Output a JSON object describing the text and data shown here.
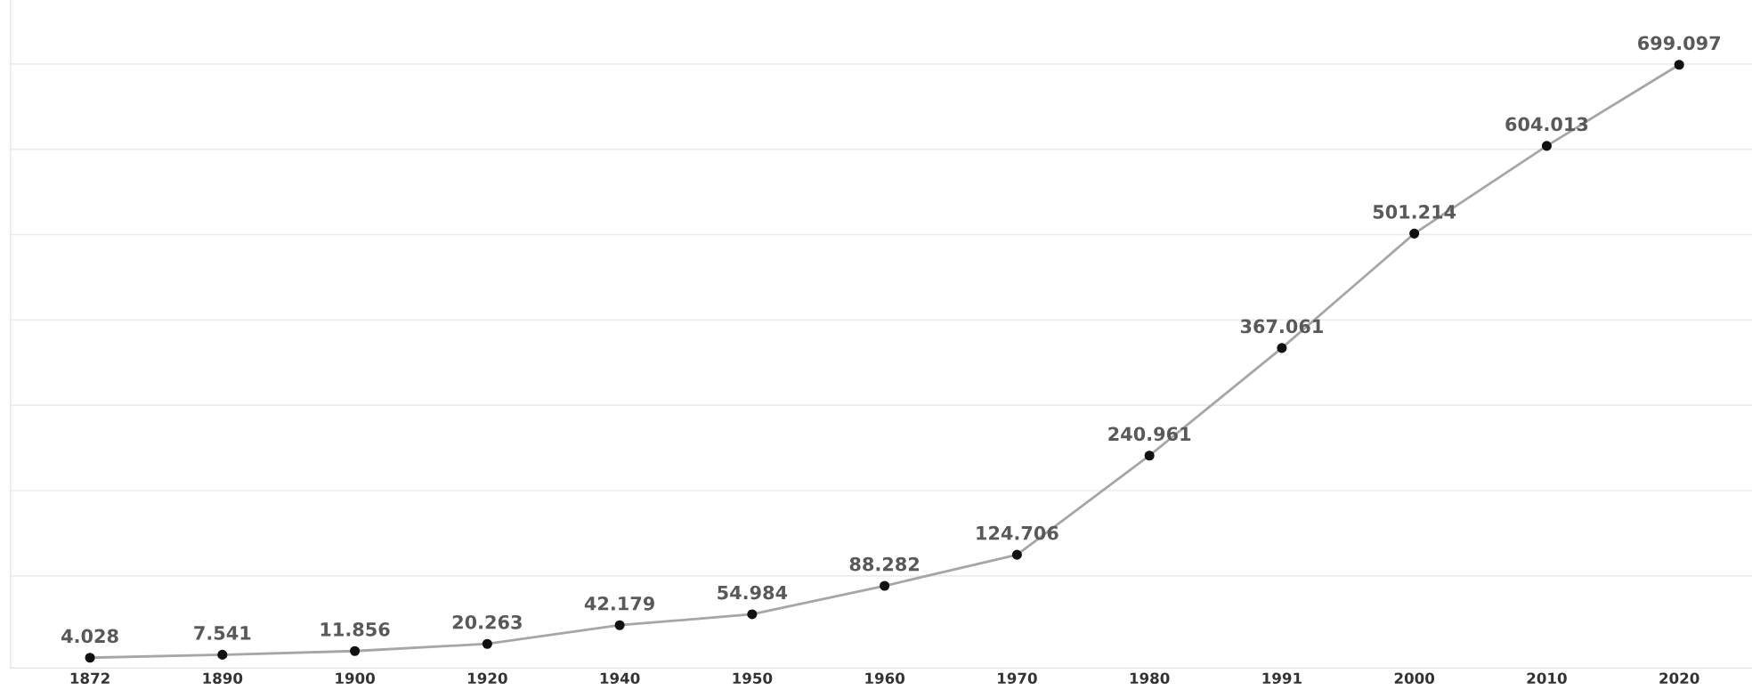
{
  "chart_data": {
    "type": "line",
    "categories": [
      "1872",
      "1890",
      "1900",
      "1920",
      "1940",
      "1950",
      "1960",
      "1970",
      "1980",
      "1991",
      "2000",
      "2010",
      "2020"
    ],
    "series": [
      {
        "color": "#a6a6a6",
        "values": [
          4.028,
          7.541,
          11.856,
          20.263,
          42.179,
          54.984,
          88.282,
          124.706,
          240.961,
          367.061,
          501.214,
          604.013,
          699.097
        ]
      }
    ],
    "ylim": [
      -8,
      775
    ],
    "yticks": [
      {
        "value": 100,
        "label": null
      },
      {
        "value": 200,
        "label": null
      },
      {
        "value": 300,
        "label": null
      },
      {
        "value": 400,
        "label": null
      },
      {
        "value": 500,
        "label": null
      },
      {
        "value": 600,
        "label": null
      },
      {
        "value": 700,
        "label": null
      }
    ],
    "grid": "y",
    "tick_labels": "x",
    "marker": "circle",
    "data_labels": true
  }
}
